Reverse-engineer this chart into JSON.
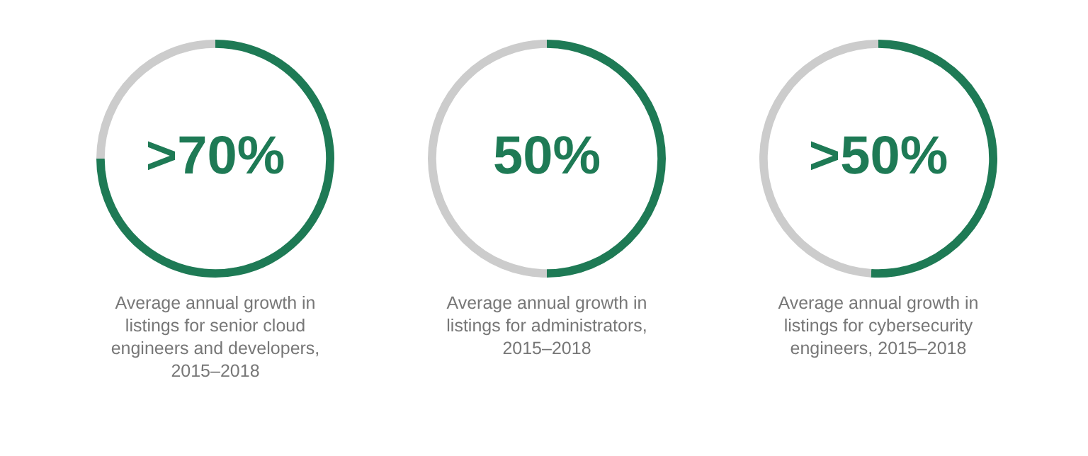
{
  "chart_data": [
    {
      "type": "donut",
      "categories": [
        null,
        null
      ],
      "values": [
        75,
        25
      ],
      "colors": [
        "#1e7a55",
        "#cccccc"
      ],
      "annotations": [
        ">70%",
        "Average annual growth in listings for senior cloud engineers and developers, 2015–2018"
      ]
    },
    {
      "type": "donut",
      "categories": [
        null,
        null
      ],
      "values": [
        50,
        50
      ],
      "colors": [
        "#1e7a55",
        "#cccccc"
      ],
      "annotations": [
        "50%",
        "Average annual growth in listings for administrators, 2015–2018"
      ]
    },
    {
      "type": "donut",
      "categories": [
        null,
        null
      ],
      "values": [
        51,
        49
      ],
      "colors": [
        "#1e7a55",
        "#cccccc"
      ],
      "annotations": [
        ">50%",
        "Average annual growth in listings for cybersecurity engineers, 2015–2018"
      ]
    }
  ]
}
